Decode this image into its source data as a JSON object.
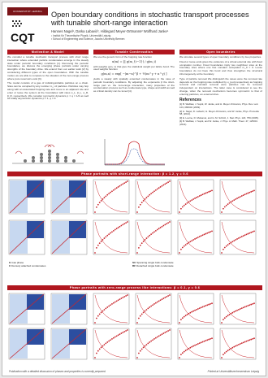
{
  "header": {
    "university_box": "UNIVERSITÄT LEIPZIG",
    "logo_text": "CQT",
    "title": "Open boundary conditions in stochastic transport processes with tunable short-range interaction",
    "authors": "Hannes Nagel¹, Darka Labavić², Hildegard Meyer-Ortmanns² Wolfhard Janke¹",
    "affiliations": [
      "¹ Institut für Theoretische Physik, Universität Leipzig",
      "² School of Engineering and Science, Jacobs University Bremen"
    ]
  },
  "sections": {
    "motivation": {
      "title": "Motivation & Model",
      "p1": "We consider a tunable stochastic transport process with short range interaction where extended particle condensates emerge in the steady state under periodic boundary conditions [1]. Removing the periodic boundaries, we discuss the emerging phase portraits under varying strengths of the boundary drive. We extend from our earlier work [2] by considering different types of the open boundaries. With the tunable model, we are able to compare to the situation of the zero-range process where pure reservoirs exist [3].",
      "p2": "The model consists of a gas of indistinguishable particles on a chain. Sites can be occupied by any number m_i of particles. Particles may hop along with an associated hopping rate and move to an adjacent site and enter or leave the system at the boundaries with rates α_L, β_L, α_R, β_R, respectively. We consider symmetric dynamics p = q = 1/2 as well as totally asymmetric dynamics p = 1, q = 0."
    },
    "condensation": {
      "title": "Tunable Condensation",
      "p1": "We use the generic form of the hopping rate function",
      "eq1": "u(m) = ∏ g(m_{i−1}) / g(m_i)",
      "p2": "with weights g(m, n) that give the statistical weight per lattice bond. The used weights function",
      "eq2": "g(m,n) = exp[ −|m−n|^β + ½(m^γ + n^γ) ]",
      "p3": "yields a steady with spatially extended condensates in the case of periodic boundary conditions. By adjusting the exponents β the short-range part vs. the zero-range interaction, many properties of the condensation process such as condensate type, shape and width as well as critical density can be tuned [4]."
    },
    "open_boundaries": {
      "title": "Open boundaries",
      "p1": "We simulate several types of open boundary conditions by two properties.",
      "p2": "Fixed or loose ends   gives the existence of a virtual external site with fixed occupation number. Fixed boundaries imply two neighbour sites at the boundary sites where one has constant occupation m_0 = 0. Loose boundaries do not have this bond and thus strengthen the structural inhomogeneity at the boundary.",
      "p3": "Type of particle removal   We distinguish the cases were the removal rate depends on the hopping rate multiplied by u_{out} respectively as hopping removal and constant removal were particles can be removed independent on interactions. The latter case is considered to see the change, when the removal mechanism becomes symmetric to that of entering particles, an external drive.",
      "refs_title": "References",
      "refs": [
        "[1] B. Wačław, J. Sopik, W. Janke, and H. Meyer-Ortmanns, Phys. Rev. Lett. 103, 080602 (2009).",
        "[2] H. Nagel, D. Labavić, H. Meyer-Ortmanns, and W. Janke, Phys. Procedia 58, (2014).",
        "[3] E. Levine, D. Mukamel, and G. M. Schütz, J. Stat. Phys. 120, 759 (2005).",
        "[4] B. Wačław, J. Sopik, and W. Janke, J. Phys. A: Math. Theor. 47, 125001 (2014)."
      ]
    },
    "phase_short": {
      "title": "Phase portraits with short-range interaction:  β = 1.2, γ = 0.6"
    },
    "phase_zero": {
      "title": "Phase portraits with zero-range process like interactions:  β = 0.1, γ = 0.6"
    },
    "legend": [
      {
        "key": "G",
        "text": "Gas phase"
      },
      {
        "key": "SC",
        "text": "Spanning single bulk condensate"
      },
      {
        "key": "C",
        "text": "Densely attached condensates"
      },
      {
        "key": "BF",
        "text": "Detached single bulk condensate"
      }
    ]
  },
  "footer": {
    "left": "Publication with a detailed discussion of phases and properties is currently prepared.",
    "right": "Printed at Universitätsrechenzentrum Leipzig"
  },
  "colors": {
    "banner": "#b0171f",
    "phase_red": "#c8262c",
    "phase_blue": "#2c4ea0",
    "phase_light": "#c7d8f0"
  }
}
